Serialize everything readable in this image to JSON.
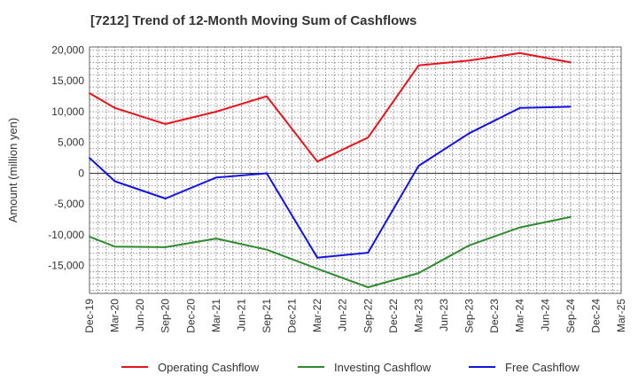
{
  "chart_data": {
    "type": "line",
    "title": "[7212]  Trend of 12-Month Moving Sum of Cashflows",
    "ylabel": "Amount (million yen)",
    "xlabel": "",
    "categories": [
      "Dec-19",
      "Mar-20",
      "Jun-20",
      "Sep-20",
      "Dec-20",
      "Mar-21",
      "Jun-21",
      "Sep-21",
      "Dec-21",
      "Mar-22",
      "Jun-22",
      "Sep-22",
      "Dec-22",
      "Mar-23",
      "Jun-23",
      "Sep-23",
      "Dec-23",
      "Mar-24",
      "Jun-24",
      "Sep-24",
      "Dec-24",
      "Mar-25"
    ],
    "ylim": [
      -19500,
      20500
    ],
    "yticks": [
      20000,
      15000,
      10000,
      5000,
      0,
      -5000,
      -10000,
      -15000
    ],
    "ytick_labels": [
      "20,000",
      "15,000",
      "10,000",
      "5,000",
      "0",
      "-5,000",
      "-10,000",
      "-15,000"
    ],
    "grid": true,
    "legend_position": "bottom",
    "series": [
      {
        "name": "Operating Cashflow",
        "color": "#e8141b",
        "values": [
          13000,
          10600,
          null,
          8000,
          null,
          10000,
          null,
          12500,
          null,
          1900,
          null,
          5800,
          null,
          17500,
          null,
          18300,
          null,
          19500,
          null,
          18000,
          null,
          null
        ]
      },
      {
        "name": "Investing Cashflow",
        "color": "#2e8b2e",
        "values": [
          -10300,
          -11900,
          null,
          -12000,
          null,
          -10600,
          null,
          -12400,
          null,
          -15500,
          null,
          -18500,
          null,
          -16200,
          null,
          -11700,
          null,
          -8800,
          null,
          -7100,
          null,
          null
        ]
      },
      {
        "name": "Free Cashflow",
        "color": "#1414e0",
        "values": [
          2500,
          -1300,
          null,
          -4100,
          null,
          -700,
          null,
          0,
          null,
          -13700,
          null,
          -12900,
          null,
          1200,
          null,
          6500,
          null,
          10600,
          null,
          10800,
          null,
          null
        ]
      }
    ]
  }
}
